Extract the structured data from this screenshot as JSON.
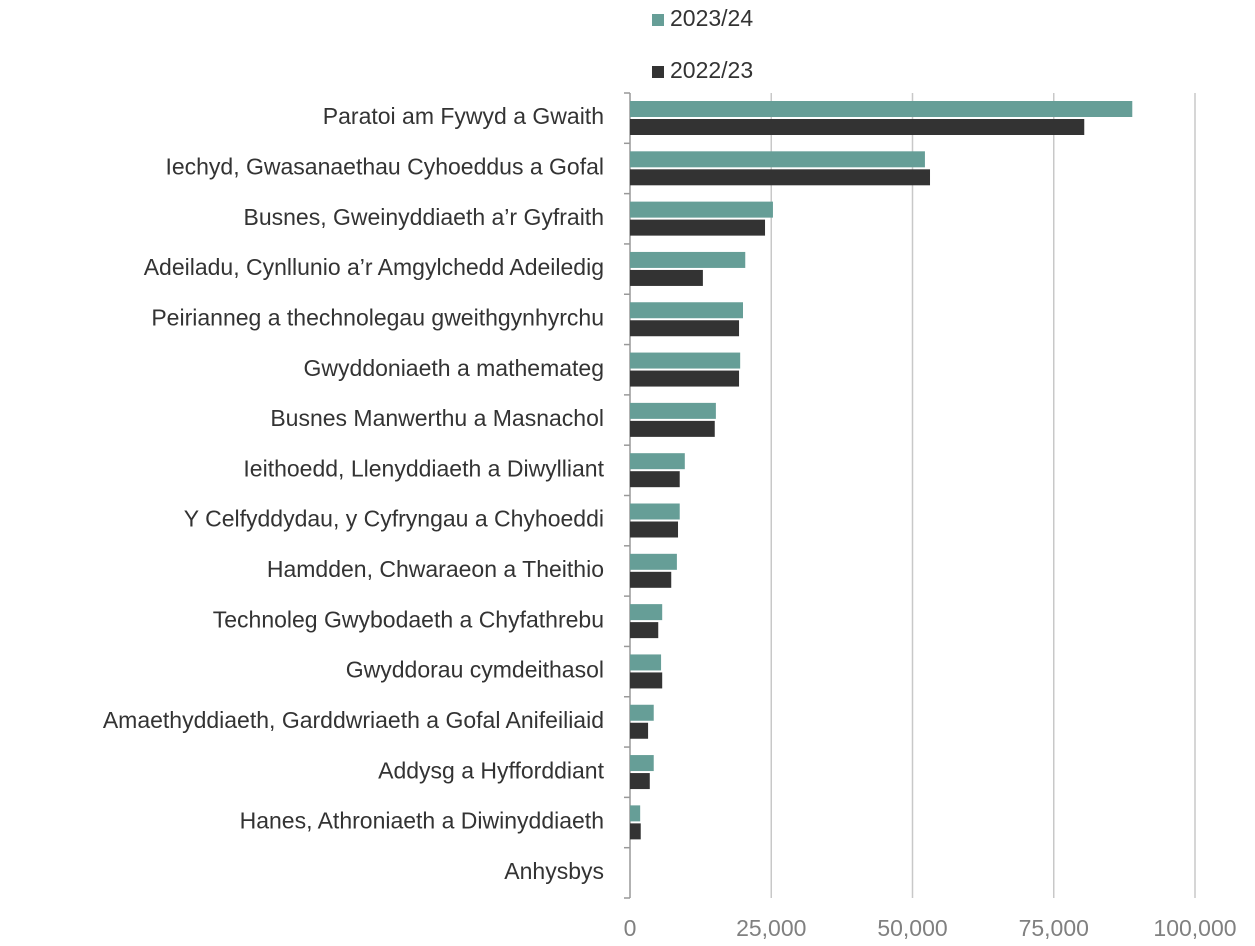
{
  "chart_data": {
    "type": "bar",
    "orientation": "horizontal",
    "categories": [
      "Paratoi am Fywyd a Gwaith",
      "Iechyd, Gwasanaethau Cyhoeddus a Gofal",
      "Busnes, Gweinyddiaeth a’r Gyfraith",
      "Adeiladu, Cynllunio a’r Amgylchedd Adeiledig",
      "Peirianneg a thechnolegau gweithgynhyrchu",
      "Gwyddoniaeth a mathemateg",
      "Busnes Manwerthu a Masnachol",
      "Ieithoedd, Llenyddiaeth a Diwylliant",
      "Y Celfyddydau, y Cyfryngau a Chyhoeddi",
      "Hamdden, Chwaraeon a Theithio",
      "Technoleg Gwybodaeth a Chyfathrebu",
      "Gwyddorau cymdeithasol",
      "Amaethyddiaeth, Garddwriaeth a Gofal Anifeiliaid",
      "Addysg a Hyfforddiant",
      "Hanes, Athroniaeth a Diwinyddiaeth",
      "Anhysbys"
    ],
    "series": [
      {
        "name": "2023/24",
        "color": "#669e97",
        "values": [
          88900,
          52200,
          25300,
          20400,
          20000,
          19500,
          15200,
          9700,
          8800,
          8300,
          5700,
          5500,
          4200,
          4200,
          1800,
          0
        ]
      },
      {
        "name": "2022/23",
        "color": "#333333",
        "values": [
          80400,
          53100,
          23900,
          12900,
          19300,
          19300,
          15000,
          8800,
          8500,
          7300,
          5000,
          5700,
          3200,
          3500,
          1900,
          0
        ]
      }
    ],
    "xlim": [
      0,
      100000
    ],
    "xticks": [
      0,
      {
        "value": 25000,
        "label": "25,000"
      },
      {
        "value": 50000,
        "label": "50,000"
      },
      {
        "value": 75000,
        "label": "75,000"
      },
      {
        "value": 100000,
        "label": "100,000"
      }
    ],
    "grid": true,
    "legend": "top"
  }
}
